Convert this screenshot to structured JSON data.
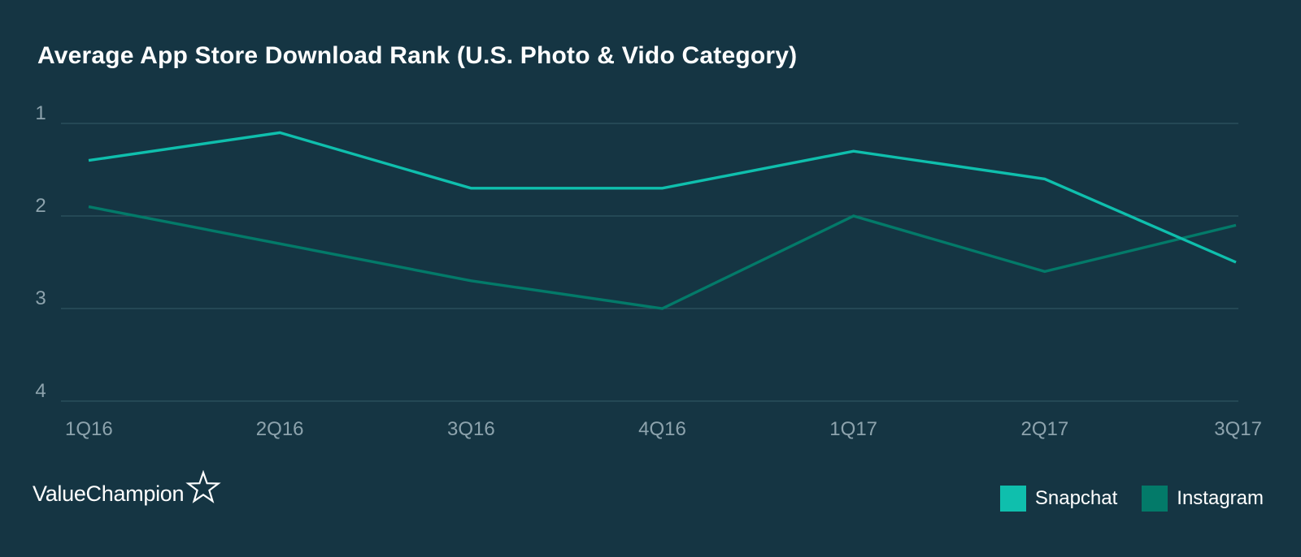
{
  "brand": {
    "name": "ValueChampion",
    "icon": "star-outline-icon"
  },
  "colors": {
    "background": "#153543",
    "grid": "#2f5360",
    "tick_text": "#8da3ad"
  },
  "chart_data": {
    "type": "line",
    "title": "Average App Store Download Rank (U.S. Photo & Vido Category)",
    "xlabel": "",
    "ylabel": "",
    "categories": [
      "1Q16",
      "2Q16",
      "3Q16",
      "4Q16",
      "1Q17",
      "2Q17",
      "3Q17"
    ],
    "y_ticks": [
      1,
      2,
      3,
      4
    ],
    "ylim": [
      1,
      4
    ],
    "y_inverted": true,
    "grid": true,
    "legend_position": "bottom-right",
    "series": [
      {
        "name": "Snapchat",
        "color": "#0fbfad",
        "values": [
          1.4,
          1.1,
          1.7,
          1.7,
          1.3,
          1.6,
          2.5
        ]
      },
      {
        "name": "Instagram",
        "color": "#037a69",
        "values": [
          1.9,
          2.3,
          2.7,
          3.0,
          2.0,
          2.6,
          2.1
        ]
      }
    ]
  }
}
